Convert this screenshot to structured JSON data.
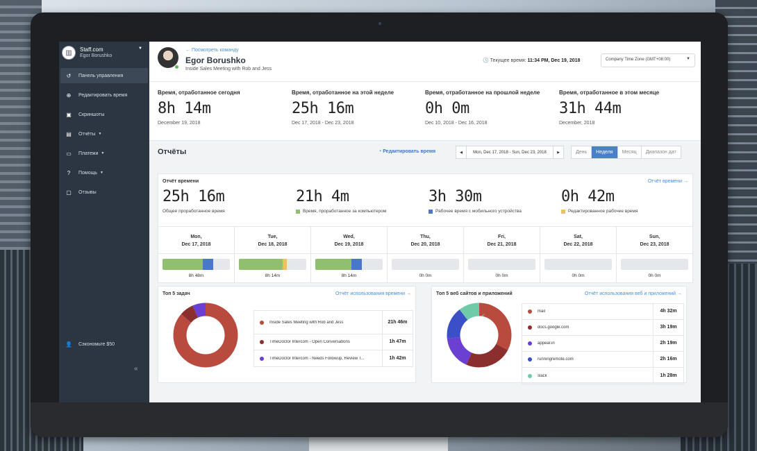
{
  "sidebar": {
    "company": "Staff.com",
    "user": "Egor Borushko",
    "items": [
      {
        "label": "Панель управления",
        "icon": "dashboard-icon",
        "active": true
      },
      {
        "label": "Редактировать время",
        "icon": "edit-time-icon"
      },
      {
        "label": "Скриншоты",
        "icon": "screenshots-icon"
      },
      {
        "label": "Отчёты",
        "icon": "reports-icon",
        "dropdown": true
      },
      {
        "label": "Платежи",
        "icon": "payments-icon",
        "dropdown": true
      },
      {
        "label": "Помощь",
        "icon": "help-icon",
        "dropdown": true
      },
      {
        "label": "Отзывы",
        "icon": "feedback-icon"
      }
    ],
    "save": "Сэкономьте $50"
  },
  "header": {
    "back_link": "← Посмотреть команду",
    "name": "Egor Borushko",
    "meeting": "Inside Sales Meeting with Rob and Jess",
    "current_time_label": "Текущее время:",
    "current_time_value": "11:34 PM, Dec 19, 2018",
    "timezone": "Company Time Zone (GMT+08:00)"
  },
  "stats": [
    {
      "title": "Время, отработанное сегодня",
      "value": "8h 14m",
      "date": "December 19, 2018"
    },
    {
      "title": "Время, отработанное на этой неделе",
      "value": "25h 16m",
      "date": "Dec 17, 2018 - Dec 23, 2018"
    },
    {
      "title": "Время, отработанное на прошлой неделе",
      "value": "0h 0m",
      "date": "Dec 10, 2018 - Dec 16, 2018"
    },
    {
      "title": "Время, отработанное в этом месяце",
      "value": "31h 44m",
      "date": "December, 2018"
    }
  ],
  "reports": {
    "title": "Отчёты",
    "edit_time": "Редактировать время",
    "date_range": "Mon, Dec 17, 2018 - Sun, Dec 23, 2018",
    "tabs": [
      "День",
      "Неделя",
      "Месяц",
      "Диапазон дат"
    ],
    "active_tab": "Неделя"
  },
  "time_report": {
    "title": "Отчёт времени",
    "link": "Отчёт времени →",
    "metrics": [
      {
        "value": "25h 16m",
        "label": "Общее проработанное время",
        "color": ""
      },
      {
        "value": "21h 4m",
        "label": "Время, проработанное за компьютером",
        "color": "#8fbf6f"
      },
      {
        "value": "3h 30m",
        "label": "Рабочее время с мобильного устройства",
        "color": "#4a78c8"
      },
      {
        "value": "0h 42m",
        "label": "Редактированное рабочее время",
        "color": "#f0c060"
      }
    ],
    "days": [
      {
        "dow": "Mon,",
        "date": "Dec 17, 2018",
        "total": "8h 48m",
        "computer": 0.6,
        "mobile": 0.15,
        "edited": 0.0
      },
      {
        "dow": "Tue,",
        "date": "Dec 18, 2018",
        "total": "8h 14m",
        "computer": 0.65,
        "mobile": 0.0,
        "edited": 0.06
      },
      {
        "dow": "Wed,",
        "date": "Dec 19, 2018",
        "total": "8h 14m",
        "computer": 0.54,
        "mobile": 0.15,
        "edited": 0.0
      },
      {
        "dow": "Thu,",
        "date": "Dec 20, 2018",
        "total": "0h 0m",
        "computer": 0,
        "mobile": 0,
        "edited": 0
      },
      {
        "dow": "Fri,",
        "date": "Dec 21, 2018",
        "total": "0h 0m",
        "computer": 0,
        "mobile": 0,
        "edited": 0
      },
      {
        "dow": "Sat,",
        "date": "Dec 22, 2018",
        "total": "0h 0m",
        "computer": 0,
        "mobile": 0,
        "edited": 0
      },
      {
        "dow": "Sun,",
        "date": "Dec 23, 2018",
        "total": "0h 0m",
        "computer": 0,
        "mobile": 0,
        "edited": 0
      }
    ]
  },
  "top_tasks": {
    "title": "Топ 5 задач",
    "link": "Отчёт использования времени →",
    "items": [
      {
        "name": "Inside Sales Meeting with Rob and Jess",
        "time": "21h 46m",
        "color": "#b94a3e"
      },
      {
        "name": "TimeDoctor Intercom - Open Conversations",
        "time": "1h 47m",
        "color": "#8b2e2e"
      },
      {
        "name": "TimeDoctor Intercom - Needs Followup, Review T...",
        "time": "1h 42m",
        "color": "#6a3fd1"
      }
    ],
    "chart_data": {
      "type": "pie",
      "labels": [
        "Inside Sales Meeting with Rob and Jess",
        "TimeDoctor Intercom - Open Conversations",
        "TimeDoctor Intercom - Needs Followup, Review T..."
      ],
      "values": [
        1306,
        107,
        102
      ]
    }
  },
  "top_sites": {
    "title": "Топ 5 веб сайтов и приложений",
    "link": "Отчёт использования веб и приложений →",
    "items": [
      {
        "name": "mail",
        "time": "4h 32m",
        "color": "#b94a3e"
      },
      {
        "name": "docs.google.com",
        "time": "3h 19m",
        "color": "#8b2e2e"
      },
      {
        "name": "appear.in",
        "time": "2h 19m",
        "color": "#6a3fd1"
      },
      {
        "name": "runningremote.com",
        "time": "2h 16m",
        "color": "#3a4fc8"
      },
      {
        "name": "slack",
        "time": "1h 28m",
        "color": "#6fcaa8"
      }
    ],
    "chart_data": {
      "type": "pie",
      "labels": [
        "mail",
        "docs.google.com",
        "appear.in",
        "runningremote.com",
        "slack"
      ],
      "values": [
        272,
        199,
        139,
        136,
        88
      ]
    }
  }
}
